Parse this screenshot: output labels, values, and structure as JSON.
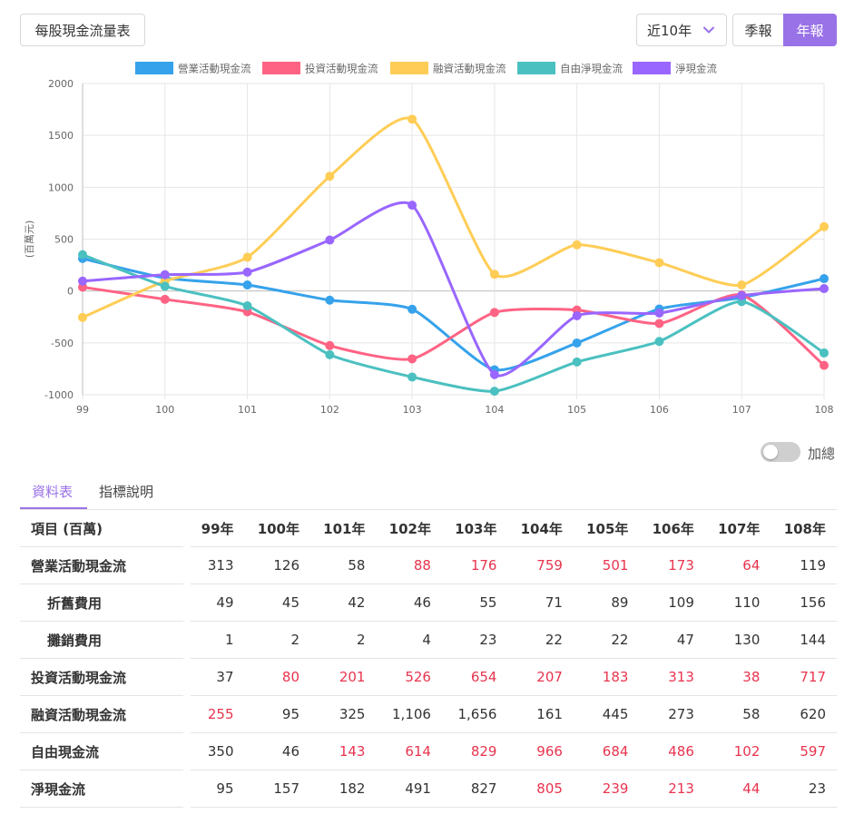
{
  "toolbar": {
    "title_button": "每股現金流量表",
    "range_value": "近10年",
    "quarter_label": "季報",
    "annual_label": "年報"
  },
  "chart_data": {
    "type": "line",
    "x": [
      "99",
      "100",
      "101",
      "102",
      "103",
      "104",
      "105",
      "106",
      "107",
      "108"
    ],
    "ylabel": "(百萬元)",
    "ylim": [
      -1000,
      2000
    ],
    "yticks": [
      "2000",
      "1500",
      "1000",
      "500",
      "0",
      "-500",
      "-1000"
    ],
    "grid": true,
    "legend_position": "top",
    "series": [
      {
        "name": "營業活動現金流",
        "color": "#36a2eb",
        "values": [
          313,
          126,
          58,
          -88,
          -176,
          -759,
          -501,
          -173,
          -64,
          119
        ]
      },
      {
        "name": "投資活動現金流",
        "color": "#ff6384",
        "values": [
          37,
          -80,
          -201,
          -526,
          -654,
          -207,
          -183,
          -313,
          -38,
          -717
        ]
      },
      {
        "name": "融資活動現金流",
        "color": "#ffcd56",
        "values": [
          -255,
          95,
          325,
          1106,
          1656,
          161,
          445,
          273,
          58,
          620
        ]
      },
      {
        "name": "自由淨現金流",
        "color": "#4bc0c0",
        "values": [
          350,
          46,
          -143,
          -614,
          -829,
          -966,
          -684,
          -486,
          -102,
          -597
        ]
      },
      {
        "name": "淨現金流",
        "color": "#9966ff",
        "values": [
          95,
          157,
          182,
          491,
          827,
          -805,
          -239,
          -213,
          -44,
          23
        ]
      }
    ]
  },
  "toggle": {
    "label": "加總"
  },
  "tabs": [
    {
      "label": "資料表"
    },
    {
      "label": "指標說明"
    }
  ],
  "table": {
    "header_label": "項目 (百萬)",
    "years": [
      "99年",
      "100年",
      "101年",
      "102年",
      "103年",
      "104年",
      "105年",
      "106年",
      "107年",
      "108年"
    ],
    "rows": [
      {
        "label": "營業活動現金流",
        "sub": false,
        "cells": [
          {
            "text": "313",
            "neg": false
          },
          {
            "text": "126",
            "neg": false
          },
          {
            "text": "58",
            "neg": false
          },
          {
            "text": "88",
            "neg": true
          },
          {
            "text": "176",
            "neg": true
          },
          {
            "text": "759",
            "neg": true
          },
          {
            "text": "501",
            "neg": true
          },
          {
            "text": "173",
            "neg": true
          },
          {
            "text": "64",
            "neg": true
          },
          {
            "text": "119",
            "neg": false
          }
        ]
      },
      {
        "label": "折舊費用",
        "sub": true,
        "cells": [
          {
            "text": "49",
            "neg": false
          },
          {
            "text": "45",
            "neg": false
          },
          {
            "text": "42",
            "neg": false
          },
          {
            "text": "46",
            "neg": false
          },
          {
            "text": "55",
            "neg": false
          },
          {
            "text": "71",
            "neg": false
          },
          {
            "text": "89",
            "neg": false
          },
          {
            "text": "109",
            "neg": false
          },
          {
            "text": "110",
            "neg": false
          },
          {
            "text": "156",
            "neg": false
          }
        ]
      },
      {
        "label": "攤銷費用",
        "sub": true,
        "cells": [
          {
            "text": "1",
            "neg": false
          },
          {
            "text": "2",
            "neg": false
          },
          {
            "text": "2",
            "neg": false
          },
          {
            "text": "4",
            "neg": false
          },
          {
            "text": "23",
            "neg": false
          },
          {
            "text": "22",
            "neg": false
          },
          {
            "text": "22",
            "neg": false
          },
          {
            "text": "47",
            "neg": false
          },
          {
            "text": "130",
            "neg": false
          },
          {
            "text": "144",
            "neg": false
          }
        ]
      },
      {
        "label": "投資活動現金流",
        "sub": false,
        "cells": [
          {
            "text": "37",
            "neg": false
          },
          {
            "text": "80",
            "neg": true
          },
          {
            "text": "201",
            "neg": true
          },
          {
            "text": "526",
            "neg": true
          },
          {
            "text": "654",
            "neg": true
          },
          {
            "text": "207",
            "neg": true
          },
          {
            "text": "183",
            "neg": true
          },
          {
            "text": "313",
            "neg": true
          },
          {
            "text": "38",
            "neg": true
          },
          {
            "text": "717",
            "neg": true
          }
        ]
      },
      {
        "label": "融資活動現金流",
        "sub": false,
        "cells": [
          {
            "text": "255",
            "neg": true
          },
          {
            "text": "95",
            "neg": false
          },
          {
            "text": "325",
            "neg": false
          },
          {
            "text": "1,106",
            "neg": false
          },
          {
            "text": "1,656",
            "neg": false
          },
          {
            "text": "161",
            "neg": false
          },
          {
            "text": "445",
            "neg": false
          },
          {
            "text": "273",
            "neg": false
          },
          {
            "text": "58",
            "neg": false
          },
          {
            "text": "620",
            "neg": false
          }
        ]
      },
      {
        "label": "自由現金流",
        "sub": false,
        "cells": [
          {
            "text": "350",
            "neg": false
          },
          {
            "text": "46",
            "neg": false
          },
          {
            "text": "143",
            "neg": true
          },
          {
            "text": "614",
            "neg": true
          },
          {
            "text": "829",
            "neg": true
          },
          {
            "text": "966",
            "neg": true
          },
          {
            "text": "684",
            "neg": true
          },
          {
            "text": "486",
            "neg": true
          },
          {
            "text": "102",
            "neg": true
          },
          {
            "text": "597",
            "neg": true
          }
        ]
      },
      {
        "label": "淨現金流",
        "sub": false,
        "cells": [
          {
            "text": "95",
            "neg": false
          },
          {
            "text": "157",
            "neg": false
          },
          {
            "text": "182",
            "neg": false
          },
          {
            "text": "491",
            "neg": false
          },
          {
            "text": "827",
            "neg": false
          },
          {
            "text": "805",
            "neg": true
          },
          {
            "text": "239",
            "neg": true
          },
          {
            "text": "213",
            "neg": true
          },
          {
            "text": "44",
            "neg": true
          },
          {
            "text": "23",
            "neg": false
          }
        ]
      }
    ]
  }
}
